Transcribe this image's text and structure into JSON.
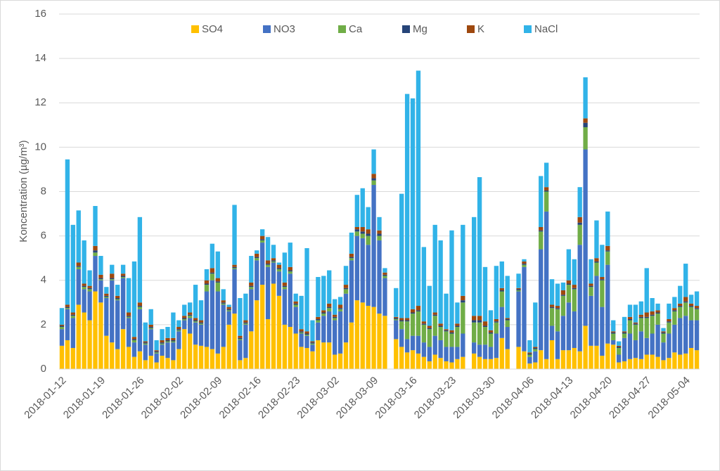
{
  "chart_data": {
    "type": "stacked-bar",
    "y_label": "Koncentration (µg/m³)",
    "categories": [
      "2018-01-12",
      null,
      null,
      null,
      null,
      null,
      null,
      "2018-01-19",
      null,
      null,
      null,
      null,
      null,
      null,
      "2018-01-26",
      null,
      null,
      null,
      null,
      null,
      null,
      "2018-02-02",
      null,
      null,
      null,
      null,
      null,
      null,
      "2018-02-09",
      null,
      null,
      null,
      null,
      null,
      null,
      "2018-02-16",
      null,
      null,
      null,
      null,
      null,
      null,
      "2018-02-23",
      null,
      null,
      null,
      null,
      null,
      null,
      "2018-03-02",
      null,
      null,
      null,
      null,
      null,
      null,
      "2018-03-09",
      null,
      null,
      null,
      null,
      null,
      null,
      "2018-03-16",
      null,
      null,
      null,
      null,
      null,
      null,
      "2018-03-23",
      null,
      null,
      null,
      null,
      null,
      null,
      "2018-03-30",
      null,
      null,
      null,
      null,
      null,
      null,
      "2018-04-06",
      null,
      null,
      null,
      null,
      null,
      null,
      "2018-04-13",
      null,
      null,
      null,
      null,
      null,
      null,
      "2018-04-20",
      null,
      null,
      null,
      null,
      null,
      null,
      "2018-04-27",
      null,
      null,
      null,
      null,
      null,
      null,
      "2018-05-04",
      null,
      null
    ],
    "series": [
      {
        "name": "SO4",
        "color": "#ffc000",
        "values": [
          1.05,
          1.3,
          0.95,
          2.9,
          2.55,
          2.2,
          3.5,
          3.0,
          1.5,
          1.2,
          0.9,
          1.8,
          1.0,
          0.55,
          0.8,
          0.4,
          0.6,
          0.3,
          0.6,
          0.5,
          0.4,
          0.9,
          1.8,
          1.6,
          1.1,
          1.05,
          1.0,
          0.9,
          0.7,
          1.0,
          2.0,
          2.5,
          0.4,
          0.5,
          1.7,
          3.1,
          3.8,
          2.25,
          3.85,
          3.3,
          2.0,
          1.9,
          1.6,
          1.0,
          0.95,
          0.8,
          1.3,
          1.2,
          1.2,
          0.65,
          0.7,
          1.2,
          2.1,
          3.1,
          3.0,
          2.85,
          2.8,
          2.5,
          2.4,
          null,
          1.35,
          1.0,
          0.75,
          0.85,
          0.7,
          0.55,
          0.35,
          0.65,
          0.5,
          0.35,
          0.3,
          0.45,
          0.55,
          null,
          0.7,
          0.55,
          0.45,
          0.45,
          0.5,
          1.4,
          0.9,
          null,
          1.0,
          0.8,
          0.25,
          0.3,
          0.85,
          0.45,
          1.3,
          0.45,
          0.85,
          0.85,
          0.95,
          0.8,
          1.95,
          1.05,
          1.05,
          0.6,
          1.15,
          1.1,
          0.3,
          0.35,
          0.45,
          0.5,
          0.45,
          0.65,
          0.65,
          0.55,
          0.4,
          0.5,
          0.75,
          0.65,
          0.7,
          0.95,
          0.85
        ]
      },
      {
        "name": "NO3",
        "color": "#4472c4",
        "values": [
          0.75,
          1.4,
          1.35,
          1.6,
          1.05,
          1.3,
          1.6,
          1.0,
          1.7,
          2.8,
          2.2,
          2.3,
          1.3,
          0.65,
          1.9,
          0.7,
          1.2,
          0.4,
          0.5,
          0.7,
          0.8,
          0.8,
          0.4,
          0.7,
          1.0,
          0.95,
          2.5,
          3.1,
          2.8,
          1.9,
          0.6,
          2.0,
          0.9,
          1.5,
          1.9,
          1.8,
          1.9,
          2.35,
          0.95,
          1.1,
          1.6,
          2.4,
          1.2,
          0.6,
          0.55,
          0.3,
          0.8,
          1.2,
          1.4,
          1.55,
          1.9,
          2.2,
          2.8,
          2.9,
          2.9,
          2.75,
          5.5,
          3.3,
          1.7,
          null,
          0.85,
          0.8,
          0.6,
          0.65,
          0.8,
          0.65,
          0.65,
          0.85,
          0.8,
          0.65,
          0.7,
          0.55,
          1.05,
          null,
          0.5,
          0.55,
          0.65,
          0.55,
          1.1,
          1.4,
          1.0,
          null,
          2.5,
          3.8,
          0.3,
          0.5,
          4.55,
          6.65,
          0.65,
          1.25,
          1.55,
          2.15,
          1.65,
          4.8,
          7.95,
          2.25,
          3.15,
          2.2,
          3.55,
          0.2,
          0.35,
          1.05,
          1.15,
          0.8,
          1.25,
          0.75,
          0.95,
          1.45,
          0.8,
          1.1,
          1.25,
          1.65,
          1.7,
          1.25,
          1.35
        ]
      },
      {
        "name": "Ca",
        "color": "#70ad47",
        "values": [
          0.1,
          0.05,
          0.1,
          0.1,
          0.1,
          0.1,
          0.15,
          0.05,
          0.05,
          0.05,
          0.05,
          0.05,
          0.05,
          0.1,
          0.1,
          0.05,
          0.05,
          0.05,
          0.05,
          0.05,
          0.05,
          0.05,
          0.05,
          0.1,
          0.05,
          0.05,
          0.3,
          0.3,
          0.4,
          0.05,
          0.05,
          0.05,
          0.05,
          0.05,
          0.1,
          0.1,
          0.1,
          0.1,
          0.05,
          0.1,
          0.1,
          0.1,
          0.1,
          0.05,
          0.05,
          0.05,
          0.1,
          0.1,
          0.15,
          0.1,
          0.1,
          0.2,
          0.1,
          0.2,
          0.2,
          0.4,
          0.2,
          0.2,
          0.1,
          null,
          0.05,
          0.35,
          0.8,
          1.0,
          1.1,
          0.8,
          0.8,
          0.9,
          0.6,
          0.7,
          0.6,
          0.9,
          1.4,
          null,
          0.9,
          1.0,
          0.8,
          0.6,
          0.5,
          0.7,
          0.3,
          null,
          0.05,
          0.1,
          0.1,
          0.1,
          0.8,
          0.9,
          0.8,
          1.0,
          0.9,
          0.8,
          1.0,
          0.9,
          1.0,
          0.4,
          0.6,
          1.2,
          0.6,
          0.3,
          0.3,
          0.2,
          0.6,
          0.7,
          0.6,
          0.9,
          0.8,
          0.5,
          0.4,
          0.5,
          0.6,
          0.5,
          0.6,
          0.6,
          0.5
        ]
      },
      {
        "name": "Mg",
        "color": "#264478",
        "values": [
          0.05,
          0.05,
          0.05,
          0.05,
          0.05,
          0.05,
          0.1,
          0.05,
          0.05,
          0.05,
          0.05,
          0.05,
          0.05,
          0.05,
          0.05,
          0.05,
          0.05,
          0.05,
          0.05,
          0.05,
          0.05,
          0.05,
          0.05,
          0.05,
          0.05,
          0.05,
          0.05,
          0.05,
          0.05,
          0.05,
          0.05,
          0.05,
          0.05,
          0.05,
          0.05,
          0.05,
          0.05,
          0.05,
          0.05,
          0.05,
          0.05,
          0.05,
          0.05,
          0.05,
          0.05,
          0.05,
          0.05,
          0.05,
          0.05,
          0.05,
          0.05,
          0.05,
          0.05,
          0.1,
          0.1,
          0.1,
          0.1,
          0.1,
          0.05,
          null,
          0.05,
          0.05,
          0.05,
          0.05,
          0.05,
          0.05,
          0.05,
          0.05,
          0.05,
          0.05,
          0.05,
          0.05,
          0.1,
          null,
          0.1,
          0.1,
          0.05,
          0.05,
          0.05,
          0.05,
          0.05,
          null,
          0.05,
          0.05,
          0.05,
          0.05,
          0.05,
          0.05,
          0.05,
          0.05,
          0.05,
          0.05,
          0.05,
          0.1,
          0.2,
          0.05,
          0.05,
          0.05,
          0.05,
          0.05,
          0.05,
          0.05,
          0.05,
          0.05,
          0.05,
          0.05,
          0.05,
          0.05,
          0.05,
          0.05,
          0.05,
          0.05,
          0.05,
          0.05,
          0.05
        ]
      },
      {
        "name": "K",
        "color": "#9e480e",
        "values": [
          0.05,
          0.1,
          0.1,
          0.15,
          0.1,
          0.1,
          0.2,
          0.15,
          0.1,
          0.2,
          0.1,
          0.1,
          0.15,
          0.1,
          0.15,
          0.05,
          0.1,
          0.05,
          0.1,
          0.1,
          0.1,
          0.1,
          0.1,
          0.1,
          0.1,
          0.1,
          0.15,
          0.2,
          0.15,
          0.1,
          0.1,
          0.1,
          0.1,
          0.1,
          0.15,
          0.15,
          0.15,
          0.15,
          0.1,
          0.15,
          0.15,
          0.15,
          0.1,
          0.1,
          0.1,
          0.05,
          0.1,
          0.1,
          0.15,
          0.1,
          0.15,
          0.15,
          0.15,
          0.1,
          0.2,
          0.2,
          0.2,
          0.15,
          0.1,
          null,
          0.05,
          0.1,
          0.1,
          0.15,
          0.2,
          0.1,
          0.1,
          0.1,
          0.1,
          0.05,
          0.1,
          0.1,
          0.2,
          null,
          0.2,
          0.2,
          0.2,
          0.1,
          0.1,
          0.1,
          0.05,
          null,
          0.05,
          0.1,
          0.05,
          0.05,
          0.15,
          0.15,
          0.1,
          0.1,
          0.2,
          0.15,
          0.15,
          0.25,
          0.2,
          0.1,
          0.15,
          0.1,
          0.2,
          0.05,
          0.05,
          0.05,
          0.1,
          0.05,
          0.1,
          0.2,
          0.15,
          0.1,
          0.05,
          0.1,
          0.1,
          0.1,
          0.2,
          0.1,
          0.1
        ]
      },
      {
        "name": "NaCl",
        "color": "#31b3e8",
        "values": [
          0.75,
          6.55,
          3.95,
          2.35,
          1.95,
          0.7,
          1.8,
          0.85,
          0.3,
          0.4,
          0.5,
          0.4,
          1.55,
          3.4,
          3.85,
          0.85,
          0.7,
          0.45,
          0.5,
          0.5,
          1.15,
          0.3,
          0.5,
          0.45,
          1.5,
          0.9,
          0.5,
          1.1,
          1.2,
          0.5,
          0.1,
          2.7,
          1.7,
          1.2,
          1.2,
          0.15,
          0.3,
          1.05,
          0.6,
          0.1,
          1.35,
          1.1,
          0.35,
          1.5,
          3.75,
          0.95,
          1.8,
          1.55,
          1.5,
          0.7,
          0.35,
          0.85,
          0.95,
          1.45,
          1.75,
          1.0,
          1.1,
          0.6,
          0.2,
          null,
          1.3,
          5.6,
          10.1,
          9.5,
          10.6,
          3.35,
          1.8,
          3.95,
          3.75,
          1.6,
          4.5,
          0.95,
          3.2,
          null,
          4.45,
          6.25,
          2.45,
          0.9,
          2.4,
          1.2,
          1.9,
          null,
          0.65,
          0.1,
          0.55,
          2.0,
          2.3,
          1.1,
          1.15,
          1.0,
          0.35,
          1.4,
          1.15,
          1.35,
          1.85,
          1.1,
          1.7,
          1.45,
          1.55,
          0.5,
          0.2,
          0.65,
          0.55,
          0.8,
          0.6,
          2.0,
          0.6,
          0.3,
          0.15,
          0.7,
          0.5,
          0.8,
          1.5,
          0.4,
          0.65
        ]
      }
    ],
    "ylim": [
      0,
      16
    ],
    "yticks": [
      0,
      2,
      4,
      6,
      8,
      10,
      12,
      14,
      16
    ],
    "grid": true,
    "legend": "top"
  }
}
